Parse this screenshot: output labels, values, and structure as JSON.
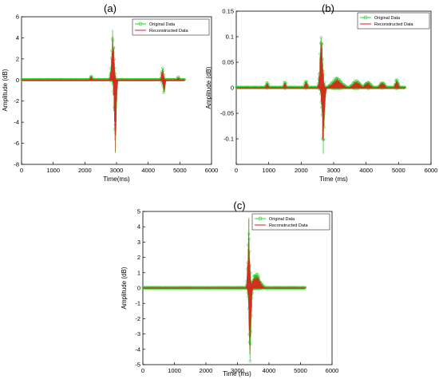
{
  "colors": {
    "original": "#2fd42f",
    "reconstructed": "#e8141a",
    "frame": "#000000",
    "background": "#ffffff"
  },
  "chart_data": [
    {
      "panel": "(a)",
      "type": "line",
      "xlabel": "Time(ms)",
      "ylabel": "Amplitude (dB)",
      "xlim": [
        0,
        6000
      ],
      "ylim": [
        -8,
        6
      ],
      "xticks": [
        0,
        1000,
        2000,
        3000,
        4000,
        5000,
        6000
      ],
      "yticks": [
        -8,
        -6,
        -4,
        -2,
        0,
        2,
        4,
        6
      ],
      "ytick_labels": [
        "-8",
        "-6",
        "-4",
        "-2",
        "0",
        "2",
        "4",
        "6"
      ],
      "legend": {
        "position": "top-right",
        "entries": [
          "Original Data",
          "Reconstructed Data"
        ]
      },
      "signal_end": 5150,
      "bursts": [
        {
          "t": 2200,
          "amp": 0.45,
          "width": 40
        },
        {
          "t": 2880,
          "amp": 5.0,
          "width": 55
        },
        {
          "t": 2960,
          "amp": -7.1,
          "width": 45
        },
        {
          "t": 4450,
          "amp": 1.2,
          "width": 45
        },
        {
          "t": 4500,
          "amp": -1.4,
          "width": 45
        },
        {
          "t": 4950,
          "amp": 0.3,
          "width": 40
        }
      ]
    },
    {
      "panel": "(b)",
      "type": "line",
      "xlabel": "Time (ms)",
      "ylabel": "Amplitude (dB)",
      "xlim": [
        0,
        6000
      ],
      "ylim": [
        -0.15,
        0.15
      ],
      "xticks": [
        0,
        1000,
        2000,
        3000,
        4000,
        5000,
        6000
      ],
      "yticks": [
        -0.15,
        -0.1,
        -0.05,
        0,
        0.05,
        0.1,
        0.15
      ],
      "ytick_labels": [
        "",
        "-0.1",
        "-0.05",
        "0",
        "0.05",
        "0.1",
        "0.15"
      ],
      "legend": {
        "position": "top-right",
        "entries": [
          "Original Data",
          "Reconstructed Data"
        ]
      },
      "signal_end": 5200,
      "bursts": [
        {
          "t": 950,
          "amp": 0.012,
          "width": 45
        },
        {
          "t": 1500,
          "amp": 0.012,
          "width": 45
        },
        {
          "t": 2150,
          "amp": 0.015,
          "width": 50
        },
        {
          "t": 2620,
          "amp": 0.103,
          "width": 60
        },
        {
          "t": 2680,
          "amp": -0.13,
          "width": 55
        },
        {
          "t": 3100,
          "amp": 0.02,
          "width": 200
        },
        {
          "t": 3700,
          "amp": 0.015,
          "width": 150
        },
        {
          "t": 4050,
          "amp": 0.012,
          "width": 120
        },
        {
          "t": 4500,
          "amp": 0.012,
          "width": 100
        },
        {
          "t": 4950,
          "amp": 0.02,
          "width": 60
        }
      ]
    },
    {
      "panel": "(c)",
      "type": "line",
      "xlabel": "Time (ms)",
      "ylabel": "Amplitude (dB)",
      "xlim": [
        0,
        6000
      ],
      "ylim": [
        -5,
        5
      ],
      "xticks": [
        0,
        1000,
        2000,
        3000,
        4000,
        5000,
        6000
      ],
      "yticks": [
        -5,
        -4,
        -3,
        -2,
        -1,
        0,
        1,
        2,
        3,
        4,
        5
      ],
      "ytick_labels": [
        "-5",
        "-4",
        "-3",
        "-2",
        "-1",
        "0",
        "1",
        "2",
        "3",
        "4",
        "5"
      ],
      "legend": {
        "position": "top-right",
        "entries": [
          "Original Data",
          "Reconstructed Data"
        ]
      },
      "signal_end": 5150,
      "bursts": [
        {
          "t": 3360,
          "amp": 4.6,
          "width": 45
        },
        {
          "t": 3400,
          "amp": -4.9,
          "width": 45
        },
        {
          "t": 3600,
          "amp": 1.0,
          "width": 160
        }
      ]
    }
  ]
}
